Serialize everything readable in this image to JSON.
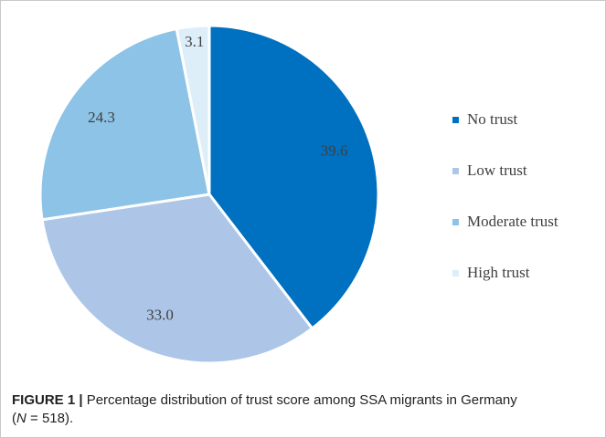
{
  "chart_data": {
    "type": "pie",
    "categories": [
      "No trust",
      "Low trust",
      "Moderate trust",
      "High trust"
    ],
    "values": [
      39.6,
      33.0,
      24.3,
      3.1
    ],
    "value_labels": [
      "39.6",
      "33.0",
      "24.3",
      "3.1"
    ],
    "colors": [
      "#0070c0",
      "#adc6e8",
      "#8cc3e6",
      "#ddeef9"
    ],
    "legend": "right"
  },
  "caption": {
    "label": "FIGURE 1 |",
    "text_before": " Percentage distribution of trust score among SSA migrants in Germany (",
    "italic": "N",
    "text_after": " = 518)."
  }
}
